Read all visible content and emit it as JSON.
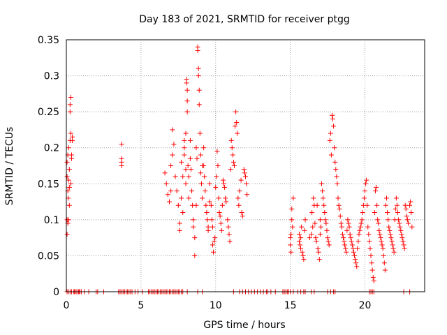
{
  "chart_data": {
    "type": "scatter",
    "title": "Day 183 of 2021, SRMTID for receiver ptgg",
    "xlabel": "GPS time / hours",
    "ylabel": "SRMTID / TECUs",
    "xlim": [
      0,
      24
    ],
    "ylim": [
      0,
      0.35
    ],
    "xticks": [
      0,
      5,
      10,
      15,
      20
    ],
    "xtick_labels": [
      "0",
      "5",
      "10",
      "15",
      "20"
    ],
    "yticks": [
      0,
      0.05,
      0.1,
      0.15,
      0.2,
      0.25,
      0.3,
      0.35
    ],
    "ytick_labels": [
      "0",
      "0.05",
      "0.1",
      "0.15",
      "0.2",
      "0.25",
      "0.3",
      "0.35"
    ],
    "grid": true,
    "marker": "+",
    "color": "#ff0000",
    "series": [
      {
        "name": "SRMTID",
        "points": [
          [
            0.05,
            0.08
          ],
          [
            0.05,
            0.1
          ],
          [
            0.05,
            0.16
          ],
          [
            0.05,
            0.18
          ],
          [
            0.1,
            0.14
          ],
          [
            0.1,
            0.095
          ],
          [
            0.1,
            0.19
          ],
          [
            0.12,
            0.13
          ],
          [
            0.15,
            0.2
          ],
          [
            0.15,
            0.155
          ],
          [
            0.15,
            0.1
          ],
          [
            0.2,
            0.17
          ],
          [
            0.2,
            0.12
          ],
          [
            0.2,
            0.145
          ],
          [
            0.25,
            0.21
          ],
          [
            0.25,
            0.25
          ],
          [
            0.25,
            0.26
          ],
          [
            0.3,
            0.27
          ],
          [
            0.3,
            0.22
          ],
          [
            0.3,
            0.15
          ],
          [
            0.35,
            0.185
          ],
          [
            0.35,
            0.19
          ],
          [
            0.4,
            0.21
          ],
          [
            0.4,
            0.215
          ],
          [
            3.7,
            0.205
          ],
          [
            3.7,
            0.185
          ],
          [
            3.7,
            0.18
          ],
          [
            3.7,
            0.175
          ],
          [
            6.6,
            0.165
          ],
          [
            6.7,
            0.15
          ],
          [
            6.8,
            0.135
          ],
          [
            6.9,
            0.125
          ],
          [
            7.0,
            0.14
          ],
          [
            7.0,
            0.175
          ],
          [
            7.1,
            0.19
          ],
          [
            7.1,
            0.225
          ],
          [
            7.2,
            0.205
          ],
          [
            7.3,
            0.16
          ],
          [
            7.4,
            0.14
          ],
          [
            7.5,
            0.12
          ],
          [
            7.6,
            0.095
          ],
          [
            7.6,
            0.085
          ],
          [
            7.7,
            0.13
          ],
          [
            7.7,
            0.18
          ],
          [
            7.8,
            0.16
          ],
          [
            7.8,
            0.11
          ],
          [
            7.9,
            0.21
          ],
          [
            7.9,
            0.2
          ],
          [
            7.9,
            0.19
          ],
          [
            8.0,
            0.22
          ],
          [
            8.0,
            0.17
          ],
          [
            8.0,
            0.15
          ],
          [
            8.05,
            0.295
          ],
          [
            8.05,
            0.29
          ],
          [
            8.1,
            0.28
          ],
          [
            8.1,
            0.265
          ],
          [
            8.1,
            0.25
          ],
          [
            8.15,
            0.175
          ],
          [
            8.2,
            0.16
          ],
          [
            8.2,
            0.13
          ],
          [
            8.3,
            0.21
          ],
          [
            8.3,
            0.185
          ],
          [
            8.35,
            0.17
          ],
          [
            8.4,
            0.14
          ],
          [
            8.45,
            0.12
          ],
          [
            8.5,
            0.1
          ],
          [
            8.5,
            0.09
          ],
          [
            8.6,
            0.075
          ],
          [
            8.6,
            0.05
          ],
          [
            8.7,
            0.12
          ],
          [
            8.7,
            0.2
          ],
          [
            8.75,
            0.185
          ],
          [
            8.8,
            0.34
          ],
          [
            8.8,
            0.335
          ],
          [
            8.85,
            0.31
          ],
          [
            8.85,
            0.3
          ],
          [
            8.9,
            0.28
          ],
          [
            8.9,
            0.26
          ],
          [
            8.95,
            0.22
          ],
          [
            9.0,
            0.19
          ],
          [
            9.0,
            0.165
          ],
          [
            9.05,
            0.15
          ],
          [
            9.1,
            0.175
          ],
          [
            9.1,
            0.13
          ],
          [
            9.2,
            0.2
          ],
          [
            9.2,
            0.175
          ],
          [
            9.25,
            0.16
          ],
          [
            9.3,
            0.14
          ],
          [
            9.35,
            0.12
          ],
          [
            9.4,
            0.11
          ],
          [
            9.45,
            0.1
          ],
          [
            9.5,
            0.09
          ],
          [
            9.5,
            0.085
          ],
          [
            9.6,
            0.15
          ],
          [
            9.6,
            0.125
          ],
          [
            9.7,
            0.12
          ],
          [
            9.75,
            0.1
          ],
          [
            9.8,
            0.09
          ],
          [
            9.8,
            0.065
          ],
          [
            9.85,
            0.055
          ],
          [
            9.9,
            0.07
          ],
          [
            9.95,
            0.075
          ],
          [
            10.0,
            0.145
          ],
          [
            10.05,
            0.16
          ],
          [
            10.1,
            0.195
          ],
          [
            10.15,
            0.175
          ],
          [
            10.2,
            0.13
          ],
          [
            10.25,
            0.11
          ],
          [
            10.3,
            0.105
          ],
          [
            10.35,
            0.095
          ],
          [
            10.4,
            0.085
          ],
          [
            10.45,
            0.12
          ],
          [
            10.5,
            0.155
          ],
          [
            10.55,
            0.15
          ],
          [
            10.6,
            0.145
          ],
          [
            10.65,
            0.13
          ],
          [
            10.7,
            0.125
          ],
          [
            10.8,
            0.1
          ],
          [
            10.85,
            0.09
          ],
          [
            10.9,
            0.08
          ],
          [
            10.95,
            0.07
          ],
          [
            11.0,
            0.17
          ],
          [
            11.05,
            0.21
          ],
          [
            11.1,
            0.2
          ],
          [
            11.15,
            0.19
          ],
          [
            11.2,
            0.18
          ],
          [
            11.25,
            0.175
          ],
          [
            11.3,
            0.23
          ],
          [
            11.35,
            0.25
          ],
          [
            11.4,
            0.235
          ],
          [
            11.45,
            0.22
          ],
          [
            11.5,
            0.13
          ],
          [
            11.55,
            0.12
          ],
          [
            11.6,
            0.14
          ],
          [
            11.7,
            0.155
          ],
          [
            11.75,
            0.11
          ],
          [
            11.8,
            0.105
          ],
          [
            11.9,
            0.17
          ],
          [
            11.95,
            0.165
          ],
          [
            12.0,
            0.16
          ],
          [
            12.05,
            0.15
          ],
          [
            12.1,
            0.135
          ],
          [
            15.0,
            0.075
          ],
          [
            15.0,
            0.065
          ],
          [
            15.05,
            0.055
          ],
          [
            15.05,
            0.08
          ],
          [
            15.1,
            0.115
          ],
          [
            15.1,
            0.1
          ],
          [
            15.15,
            0.09
          ],
          [
            15.2,
            0.13
          ],
          [
            15.6,
            0.08
          ],
          [
            15.6,
            0.07
          ],
          [
            15.65,
            0.065
          ],
          [
            15.7,
            0.075
          ],
          [
            15.7,
            0.06
          ],
          [
            15.75,
            0.09
          ],
          [
            15.8,
            0.055
          ],
          [
            15.85,
            0.05
          ],
          [
            15.9,
            0.045
          ],
          [
            15.95,
            0.085
          ],
          [
            16.0,
            0.1
          ],
          [
            16.3,
            0.075
          ],
          [
            16.4,
            0.08
          ],
          [
            16.45,
            0.11
          ],
          [
            16.5,
            0.09
          ],
          [
            16.55,
            0.13
          ],
          [
            16.6,
            0.12
          ],
          [
            16.65,
            0.095
          ],
          [
            16.7,
            0.075
          ],
          [
            16.75,
            0.07
          ],
          [
            16.8,
            0.12
          ],
          [
            16.85,
            0.06
          ],
          [
            16.9,
            0.055
          ],
          [
            16.95,
            0.045
          ],
          [
            17.0,
            0.08
          ],
          [
            17.0,
            0.1
          ],
          [
            17.05,
            0.09
          ],
          [
            17.1,
            0.15
          ],
          [
            17.15,
            0.14
          ],
          [
            17.2,
            0.13
          ],
          [
            17.25,
            0.12
          ],
          [
            17.3,
            0.11
          ],
          [
            17.35,
            0.1
          ],
          [
            17.4,
            0.095
          ],
          [
            17.45,
            0.085
          ],
          [
            17.5,
            0.075
          ],
          [
            17.55,
            0.07
          ],
          [
            17.6,
            0.065
          ],
          [
            17.65,
            0.21
          ],
          [
            17.7,
            0.22
          ],
          [
            17.75,
            0.19
          ],
          [
            17.8,
            0.245
          ],
          [
            17.85,
            0.24
          ],
          [
            17.9,
            0.23
          ],
          [
            17.95,
            0.2
          ],
          [
            18.0,
            0.18
          ],
          [
            18.05,
            0.17
          ],
          [
            18.1,
            0.16
          ],
          [
            18.15,
            0.15
          ],
          [
            18.2,
            0.13
          ],
          [
            18.25,
            0.12
          ],
          [
            18.3,
            0.115
          ],
          [
            18.35,
            0.105
          ],
          [
            18.4,
            0.095
          ],
          [
            18.45,
            0.09
          ],
          [
            18.5,
            0.08
          ],
          [
            18.55,
            0.075
          ],
          [
            18.6,
            0.07
          ],
          [
            18.65,
            0.065
          ],
          [
            18.7,
            0.06
          ],
          [
            18.75,
            0.055
          ],
          [
            18.8,
            0.085
          ],
          [
            18.85,
            0.1
          ],
          [
            18.9,
            0.095
          ],
          [
            18.95,
            0.09
          ],
          [
            19.0,
            0.08
          ],
          [
            19.05,
            0.075
          ],
          [
            19.1,
            0.07
          ],
          [
            19.15,
            0.065
          ],
          [
            19.2,
            0.06
          ],
          [
            19.25,
            0.055
          ],
          [
            19.3,
            0.05
          ],
          [
            19.35,
            0.045
          ],
          [
            19.4,
            0.04
          ],
          [
            19.45,
            0.035
          ],
          [
            19.5,
            0.06
          ],
          [
            19.55,
            0.07
          ],
          [
            19.6,
            0.08
          ],
          [
            19.65,
            0.085
          ],
          [
            19.7,
            0.09
          ],
          [
            19.75,
            0.095
          ],
          [
            19.8,
            0.1
          ],
          [
            19.85,
            0.11
          ],
          [
            19.9,
            0.12
          ],
          [
            19.95,
            0.13
          ],
          [
            20.0,
            0.14
          ],
          [
            20.05,
            0.15
          ],
          [
            20.1,
            0.155
          ],
          [
            20.15,
            0.12
          ],
          [
            20.2,
            0.09
          ],
          [
            20.25,
            0.08
          ],
          [
            20.3,
            0.07
          ],
          [
            20.35,
            0.06
          ],
          [
            20.4,
            0.05
          ],
          [
            20.45,
            0.04
          ],
          [
            20.5,
            0.03
          ],
          [
            20.55,
            0.02
          ],
          [
            20.6,
            0.015
          ],
          [
            20.65,
            0.11
          ],
          [
            20.7,
            0.14
          ],
          [
            20.75,
            0.145
          ],
          [
            20.8,
            0.12
          ],
          [
            20.85,
            0.1
          ],
          [
            20.9,
            0.095
          ],
          [
            20.95,
            0.085
          ],
          [
            21.0,
            0.08
          ],
          [
            21.05,
            0.075
          ],
          [
            21.1,
            0.07
          ],
          [
            21.15,
            0.065
          ],
          [
            21.2,
            0.06
          ],
          [
            21.25,
            0.05
          ],
          [
            21.3,
            0.04
          ],
          [
            21.35,
            0.03
          ],
          [
            21.4,
            0.12
          ],
          [
            21.45,
            0.13
          ],
          [
            21.5,
            0.11
          ],
          [
            21.55,
            0.1
          ],
          [
            21.6,
            0.09
          ],
          [
            21.65,
            0.085
          ],
          [
            21.7,
            0.08
          ],
          [
            21.75,
            0.075
          ],
          [
            21.8,
            0.07
          ],
          [
            21.85,
            0.065
          ],
          [
            21.9,
            0.06
          ],
          [
            21.95,
            0.055
          ],
          [
            22.0,
            0.1
          ],
          [
            22.05,
            0.115
          ],
          [
            22.1,
            0.13
          ],
          [
            22.15,
            0.12
          ],
          [
            22.2,
            0.11
          ],
          [
            22.25,
            0.1
          ],
          [
            22.3,
            0.095
          ],
          [
            22.35,
            0.09
          ],
          [
            22.4,
            0.085
          ],
          [
            22.45,
            0.08
          ],
          [
            22.5,
            0.075
          ],
          [
            22.55,
            0.07
          ],
          [
            22.6,
            0.065
          ],
          [
            22.65,
            0.06
          ],
          [
            22.7,
            0.12
          ],
          [
            22.75,
            0.115
          ],
          [
            22.8,
            0.105
          ],
          [
            22.85,
            0.1
          ],
          [
            22.9,
            0.095
          ],
          [
            23.0,
            0.12
          ],
          [
            23.05,
            0.125
          ],
          [
            23.1,
            0.11
          ],
          [
            23.15,
            0.09
          ]
        ]
      }
    ],
    "zero_points_x": [
      0.05,
      0.15,
      0.25,
      0.35,
      0.5,
      0.55,
      0.6,
      0.7,
      0.8,
      0.85,
      0.9,
      1.0,
      1.2,
      1.5,
      2.0,
      2.1,
      2.5,
      3.5,
      3.6,
      3.7,
      3.8,
      3.9,
      4.0,
      4.1,
      4.2,
      4.3,
      4.4,
      4.6,
      4.8,
      5.1,
      5.5,
      5.6,
      5.7,
      5.8,
      5.9,
      6.0,
      6.1,
      6.2,
      6.3,
      6.4,
      6.5,
      6.6,
      6.7,
      6.8,
      6.9,
      7.0,
      7.1,
      7.2,
      7.3,
      7.4,
      7.5,
      7.6,
      7.7,
      7.8,
      8.1,
      8.8,
      9.1,
      11.2,
      11.6,
      11.8,
      12.0,
      12.2,
      12.4,
      12.6,
      12.8,
      13.0,
      13.2,
      13.4,
      13.5,
      13.7,
      14.0,
      14.5,
      14.6,
      14.7,
      14.8,
      14.9,
      15.0,
      15.2,
      15.5,
      15.7,
      15.9,
      16.0,
      16.4,
      16.6,
      17.5,
      17.7,
      17.9,
      18.0,
      20.3,
      20.4,
      20.5,
      20.6,
      22.6,
      23.0
    ]
  }
}
